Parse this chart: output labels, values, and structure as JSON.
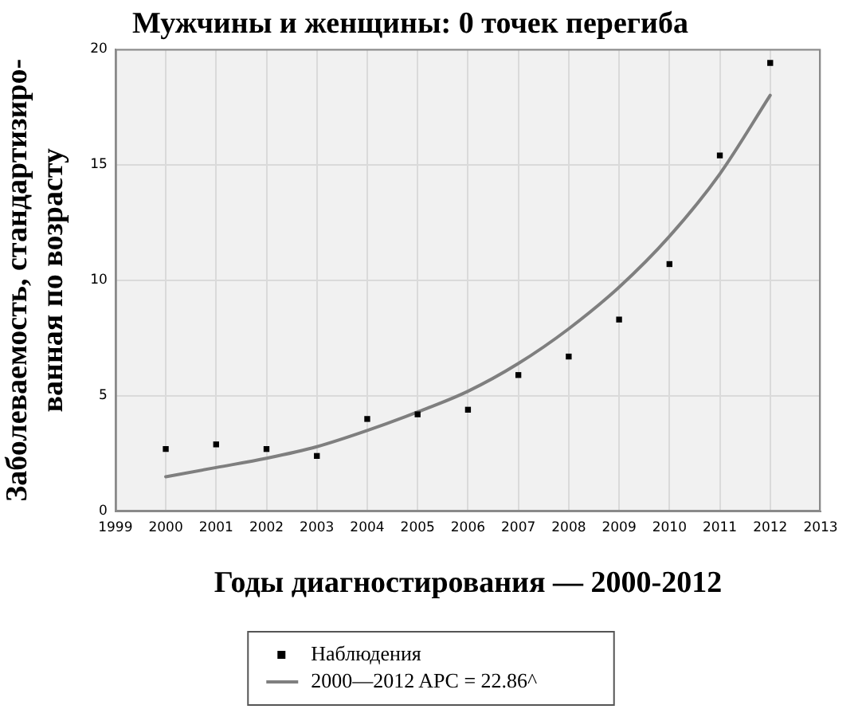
{
  "chart_data": {
    "type": "scatter",
    "title": "Мужчины и женщины: 0 точек перегиба",
    "xlabel": "Годы диагностирования — 2000-2012",
    "ylabel": "Заболеваемость, стандартизиро-\nванная по возрасту",
    "x": [
      2000,
      2001,
      2002,
      2003,
      2004,
      2005,
      2006,
      2007,
      2008,
      2009,
      2010,
      2011,
      2012
    ],
    "series": [
      {
        "name": "Наблюдения",
        "type": "scatter",
        "marker": "square",
        "color": "#000000",
        "values": [
          2.7,
          2.9,
          2.7,
          2.4,
          4.0,
          4.2,
          4.4,
          5.9,
          6.7,
          8.3,
          10.7,
          15.4,
          19.4
        ]
      },
      {
        "name": "2000—2012 APC = 22.86^",
        "type": "line",
        "marker": "none",
        "color": "#7f7f7f",
        "values": [
          1.5,
          1.9,
          2.3,
          2.8,
          3.5,
          4.3,
          5.2,
          6.4,
          7.9,
          9.7,
          11.9,
          14.6,
          18.0
        ]
      }
    ],
    "xlim": [
      1999,
      2013
    ],
    "xticks": [
      1999,
      2000,
      2001,
      2002,
      2003,
      2004,
      2005,
      2006,
      2007,
      2008,
      2009,
      2010,
      2011,
      2012,
      2013
    ],
    "ylim": [
      0,
      20
    ],
    "yticks": [
      0,
      5,
      10,
      15,
      20
    ],
    "grid": true,
    "legend": "bottom"
  }
}
